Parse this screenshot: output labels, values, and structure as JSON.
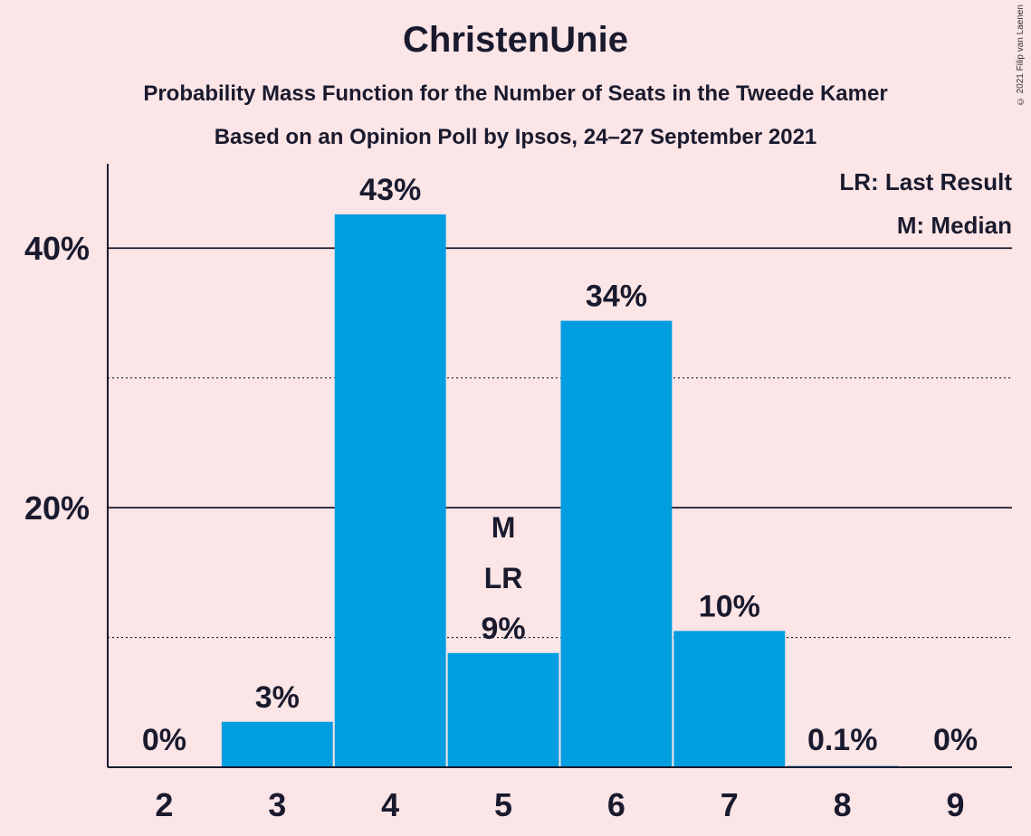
{
  "chart_data": {
    "type": "bar",
    "title": "ChristenUnie",
    "subtitle": "Probability Mass Function for the Number of Seats in the Tweede Kamer",
    "subtitle2": "Based on an Opinion Poll by Ipsos, 24–27 September 2021",
    "copyright": "© 2021 Filip van Laenen",
    "categories": [
      "2",
      "3",
      "4",
      "5",
      "6",
      "7",
      "8",
      "9"
    ],
    "values": [
      0,
      3.5,
      42.6,
      8.8,
      34.4,
      10.5,
      0.1,
      0
    ],
    "value_labels": [
      "0%",
      "3%",
      "43%",
      "9%",
      "34%",
      "10%",
      "0.1%",
      "0%"
    ],
    "y_ticks": [
      {
        "value": 20,
        "label": "20%"
      },
      {
        "value": 40,
        "label": "40%"
      }
    ],
    "minor_gridlines": [
      10,
      30
    ],
    "ylim": [
      0,
      46.5
    ],
    "legend": [
      "LR: Last Result",
      "M: Median"
    ],
    "legend_position": "top-right",
    "markers": {
      "5": [
        "M",
        "LR"
      ]
    },
    "bar_color": "#009de0"
  }
}
